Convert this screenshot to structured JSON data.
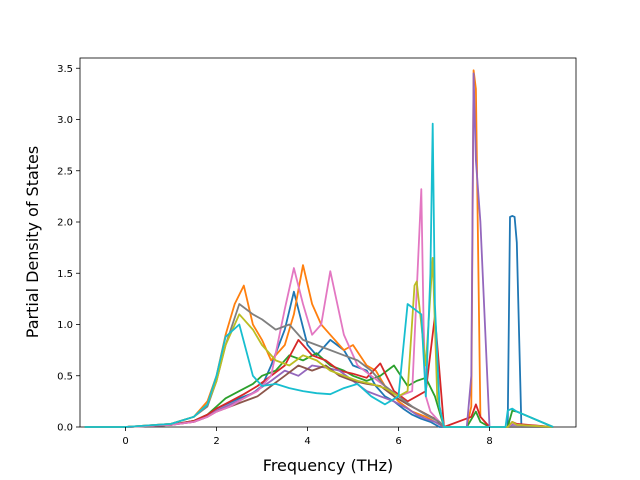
{
  "chart_data": {
    "type": "line",
    "title": "",
    "xlabel": "Frequency (THz)",
    "ylabel": "Partial Density of States",
    "xlim": [
      -1.0,
      9.9
    ],
    "ylim": [
      0.0,
      3.6
    ],
    "xticks": [
      0,
      2,
      4,
      6,
      8
    ],
    "yticks": [
      0.0,
      0.5,
      1.0,
      1.5,
      2.0,
      2.5,
      3.0,
      3.5
    ],
    "xtick_labels": [
      "0",
      "2",
      "4",
      "6",
      "8"
    ],
    "ytick_labels": [
      "0.0",
      "0.5",
      "1.0",
      "1.5",
      "2.0",
      "2.5",
      "3.0",
      "3.5"
    ],
    "grid": false,
    "legend": "none",
    "series": [
      {
        "color": "#1f77b4",
        "x": [
          -0.9,
          0,
          1,
          1.5,
          1.8,
          2.0,
          2.2,
          2.5,
          2.8,
          3.0,
          3.2,
          3.5,
          3.7,
          4.0,
          4.2,
          4.5,
          4.8,
          5.0,
          5.3,
          5.5,
          5.7,
          5.9,
          6.1,
          6.3,
          6.5,
          6.7,
          6.9,
          7.1,
          7.3,
          7.5,
          7.7,
          7.9,
          8.1,
          8.3,
          8.4,
          8.45,
          8.5,
          8.55,
          8.6,
          8.7,
          9.4
        ],
        "y": [
          0,
          0,
          0.02,
          0.06,
          0.12,
          0.18,
          0.22,
          0.28,
          0.33,
          0.4,
          0.6,
          0.95,
          1.32,
          0.8,
          0.7,
          0.85,
          0.75,
          0.6,
          0.55,
          0.4,
          0.3,
          0.25,
          0.18,
          0.12,
          0.08,
          0.05,
          0,
          0,
          0,
          0,
          0,
          0,
          0,
          0,
          0,
          2.05,
          2.06,
          2.05,
          1.8,
          0,
          0
        ]
      },
      {
        "color": "#ff7f0e",
        "x": [
          -0.9,
          0,
          1,
          1.5,
          1.8,
          2.0,
          2.2,
          2.4,
          2.6,
          2.8,
          3.0,
          3.2,
          3.5,
          3.7,
          3.9,
          4.1,
          4.3,
          4.5,
          4.8,
          5.0,
          5.3,
          5.5,
          5.7,
          6.0,
          6.3,
          6.6,
          6.8,
          7.0,
          7.5,
          7.6,
          7.65,
          7.7,
          7.8,
          8.0,
          8.4,
          8.5,
          9.4
        ],
        "y": [
          0,
          0,
          0.03,
          0.1,
          0.25,
          0.5,
          0.9,
          1.2,
          1.38,
          1.0,
          0.85,
          0.65,
          0.8,
          1.1,
          1.58,
          1.2,
          1.0,
          0.9,
          0.75,
          0.8,
          0.6,
          0.55,
          0.4,
          0.25,
          0.15,
          0.1,
          0.05,
          0,
          0,
          0.2,
          3.48,
          3.3,
          0.1,
          0,
          0,
          0.03,
          0
        ]
      },
      {
        "color": "#2ca02c",
        "x": [
          -0.9,
          0,
          1,
          1.5,
          1.8,
          2.0,
          2.2,
          2.5,
          2.8,
          3.0,
          3.3,
          3.6,
          3.9,
          4.2,
          4.5,
          4.8,
          5.0,
          5.3,
          5.6,
          5.9,
          6.2,
          6.4,
          6.6,
          6.8,
          7.0,
          7.5,
          7.7,
          7.8,
          8.0,
          8.4,
          8.5,
          8.6,
          9.4
        ],
        "y": [
          0,
          0,
          0.02,
          0.06,
          0.12,
          0.2,
          0.28,
          0.35,
          0.42,
          0.5,
          0.55,
          0.7,
          0.65,
          0.72,
          0.6,
          0.55,
          0.5,
          0.45,
          0.5,
          0.6,
          0.4,
          0.45,
          0.48,
          0.3,
          0,
          0,
          0.15,
          0.05,
          0,
          0,
          0.16,
          0.15,
          0
        ]
      },
      {
        "color": "#d62728",
        "x": [
          -0.9,
          0,
          1,
          1.5,
          1.8,
          2.0,
          2.3,
          2.6,
          2.9,
          3.2,
          3.5,
          3.8,
          4.1,
          4.4,
          4.7,
          5.0,
          5.3,
          5.6,
          5.9,
          6.2,
          6.4,
          6.6,
          6.8,
          7.0,
          7.6,
          7.7,
          7.8,
          8.0,
          8.4,
          8.5,
          8.6,
          9.4
        ],
        "y": [
          0,
          0,
          0.02,
          0.06,
          0.12,
          0.18,
          0.25,
          0.32,
          0.4,
          0.5,
          0.6,
          0.85,
          0.7,
          0.65,
          0.55,
          0.52,
          0.48,
          0.62,
          0.35,
          0.25,
          0.3,
          0.35,
          1.08,
          0,
          0.1,
          0.22,
          0.1,
          0,
          0,
          0.05,
          0.03,
          0
        ]
      },
      {
        "color": "#9467bd",
        "x": [
          -0.9,
          0,
          1,
          1.5,
          1.8,
          2.0,
          2.3,
          2.6,
          2.9,
          3.2,
          3.5,
          3.8,
          4.1,
          4.4,
          4.7,
          5.0,
          5.3,
          5.6,
          5.9,
          6.2,
          6.4,
          6.6,
          6.8,
          7.0,
          7.5,
          7.6,
          7.65,
          7.7,
          7.8,
          8.0,
          8.4,
          8.5,
          9.4
        ],
        "y": [
          0,
          0,
          0.02,
          0.05,
          0.1,
          0.16,
          0.22,
          0.28,
          0.36,
          0.45,
          0.55,
          0.5,
          0.6,
          0.58,
          0.55,
          0.45,
          0.35,
          0.3,
          0.25,
          0.18,
          0.12,
          0.08,
          0.05,
          0,
          0,
          0.5,
          3.45,
          2.6,
          2.0,
          0,
          0,
          0.02,
          0
        ]
      },
      {
        "color": "#8c564b",
        "x": [
          -0.9,
          0,
          1,
          1.5,
          1.8,
          2.0,
          2.3,
          2.6,
          2.9,
          3.2,
          3.5,
          3.8,
          4.1,
          4.4,
          4.7,
          5.0,
          5.3,
          5.6,
          5.9,
          6.2,
          6.5,
          6.8,
          7.0,
          9.4
        ],
        "y": [
          0,
          0,
          0.02,
          0.05,
          0.1,
          0.15,
          0.2,
          0.25,
          0.3,
          0.4,
          0.5,
          0.6,
          0.55,
          0.6,
          0.5,
          0.45,
          0.42,
          0.4,
          0.3,
          0.22,
          0.15,
          0.08,
          0,
          0
        ]
      },
      {
        "color": "#e377c2",
        "x": [
          -0.9,
          0,
          1,
          1.5,
          1.8,
          2.0,
          2.3,
          2.6,
          2.9,
          3.2,
          3.5,
          3.7,
          3.9,
          4.1,
          4.3,
          4.5,
          4.8,
          5.1,
          5.4,
          5.7,
          6.0,
          6.3,
          6.5,
          6.55,
          6.6,
          6.7,
          6.9,
          7.0,
          8.4,
          8.5,
          8.6,
          9.4
        ],
        "y": [
          0,
          0,
          0.02,
          0.05,
          0.1,
          0.15,
          0.2,
          0.28,
          0.35,
          0.5,
          1.15,
          1.55,
          1.2,
          0.9,
          1.0,
          1.52,
          0.9,
          0.6,
          0.5,
          0.4,
          0.3,
          0.35,
          2.32,
          1.0,
          0.3,
          0.15,
          0.05,
          0,
          0,
          0.04,
          0.02,
          0
        ]
      },
      {
        "color": "#7f7f7f",
        "x": [
          -0.9,
          0,
          1,
          1.5,
          1.8,
          2.0,
          2.2,
          2.5,
          2.8,
          3.0,
          3.3,
          3.6,
          3.9,
          4.2,
          4.5,
          4.8,
          5.1,
          5.4,
          5.7,
          6.0,
          6.3,
          6.6,
          6.9,
          7.0,
          9.4
        ],
        "y": [
          0,
          0,
          0.03,
          0.1,
          0.2,
          0.45,
          0.8,
          1.2,
          1.1,
          1.05,
          0.95,
          1.0,
          0.85,
          0.8,
          0.75,
          0.7,
          0.65,
          0.55,
          0.4,
          0.3,
          0.2,
          0.12,
          0.05,
          0,
          0
        ]
      },
      {
        "color": "#bcbd22",
        "x": [
          -0.9,
          0,
          1,
          1.5,
          1.8,
          2.0,
          2.2,
          2.5,
          2.8,
          3.0,
          3.3,
          3.6,
          3.9,
          4.2,
          4.5,
          4.8,
          5.1,
          5.4,
          5.7,
          6.0,
          6.2,
          6.35,
          6.4,
          6.6,
          6.75,
          6.8,
          6.85,
          7.0,
          8.4,
          8.5,
          8.6,
          9.4
        ],
        "y": [
          0,
          0,
          0.03,
          0.1,
          0.22,
          0.45,
          0.8,
          1.1,
          0.95,
          0.8,
          0.65,
          0.6,
          0.7,
          0.65,
          0.55,
          0.5,
          0.45,
          0.42,
          0.38,
          0.3,
          0.35,
          1.38,
          1.42,
          0.6,
          1.65,
          1.0,
          0.3,
          0,
          0,
          0.05,
          0.02,
          0
        ]
      },
      {
        "color": "#17becf",
        "x": [
          -0.9,
          0,
          1,
          1.5,
          1.8,
          2.0,
          2.2,
          2.5,
          2.8,
          3.0,
          3.3,
          3.6,
          3.9,
          4.2,
          4.5,
          4.8,
          5.1,
          5.4,
          5.7,
          6.0,
          6.2,
          6.5,
          6.6,
          6.7,
          6.75,
          6.8,
          6.9,
          7.0,
          8.35,
          8.4,
          8.5,
          8.6,
          9.4
        ],
        "y": [
          0,
          0,
          0.03,
          0.1,
          0.22,
          0.5,
          0.88,
          1.0,
          0.5,
          0.4,
          0.42,
          0.38,
          0.35,
          0.33,
          0.32,
          0.38,
          0.42,
          0.3,
          0.22,
          0.3,
          1.2,
          1.1,
          0.3,
          1.5,
          2.96,
          1.2,
          0.2,
          0,
          0,
          0.16,
          0.18,
          0.15,
          0
        ]
      }
    ]
  }
}
